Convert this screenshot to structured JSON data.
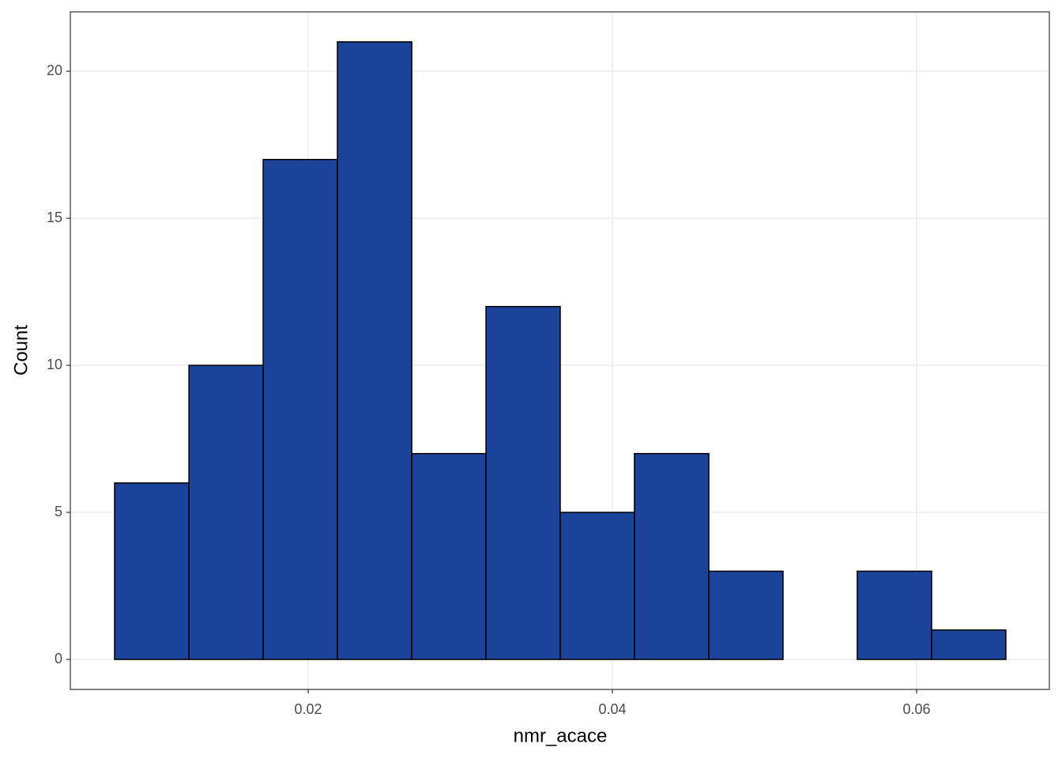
{
  "chart_data": {
    "type": "histogram",
    "x_label": "nmr_acace",
    "y_label": "Count",
    "bins": [
      0.00727,
      0.01216,
      0.01704,
      0.02192,
      0.02681,
      0.03169,
      0.03657,
      0.04145,
      0.04634,
      0.05122,
      0.0561,
      0.06099,
      0.06587
    ],
    "values": [
      6,
      10,
      17,
      21,
      7,
      12,
      5,
      7,
      3,
      0,
      3,
      1
    ],
    "color": "#1a4399",
    "edge_color": "#000000",
    "xlim": [
      0.00436,
      0.06873
    ],
    "ylim": [
      -1.02,
      22.02
    ],
    "xticks": [
      0.02,
      0.04,
      0.06
    ],
    "yticks": [
      0,
      5,
      10,
      15,
      20
    ],
    "grid": true
  }
}
